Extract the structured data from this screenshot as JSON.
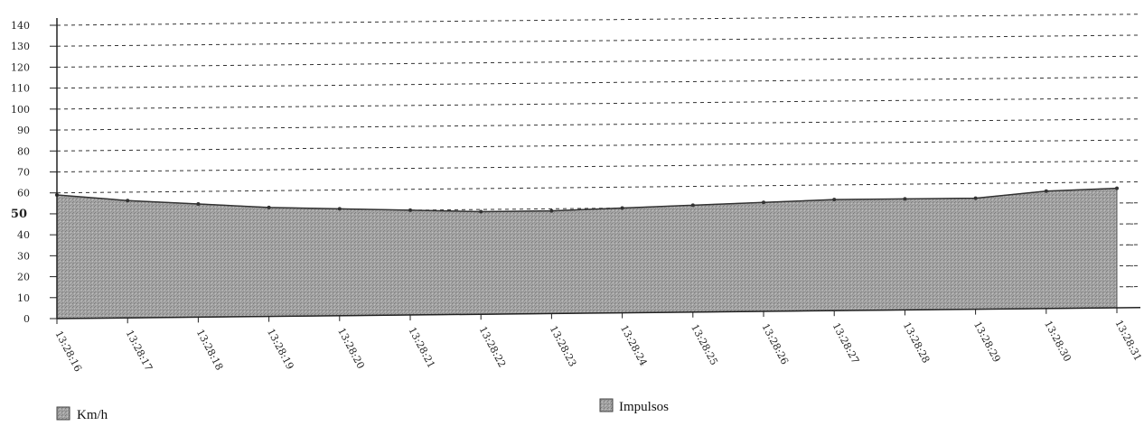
{
  "chart_data": {
    "type": "area",
    "y_ticks": [
      "0",
      "10",
      "20",
      "30",
      "40",
      "50",
      "60",
      "70",
      "80",
      "90",
      "100",
      "110",
      "120",
      "130",
      "140"
    ],
    "y_bold_tick": "50",
    "ylim": [
      0,
      140
    ],
    "x": [
      "13:28:16",
      "13:28:17",
      "13:28:18",
      "13:28:19",
      "13:28:20",
      "13:28:21",
      "13:28:22",
      "13:28:23",
      "13:28:24",
      "13:28:25",
      "13:28:26",
      "13:28:27",
      "13:28:28",
      "13:28:29",
      "13:28:30",
      "13:28:31"
    ],
    "series": [
      {
        "name": "Km/h",
        "values": [
          59,
          56,
          54,
          52,
          51,
          50,
          49,
          49,
          50,
          51,
          52,
          53,
          53,
          53,
          56,
          57
        ]
      },
      {
        "name": "Impulsos",
        "values": [
          59,
          56,
          54,
          52,
          51,
          50,
          49,
          49,
          50,
          51,
          52,
          53,
          53,
          53,
          56,
          57
        ]
      }
    ],
    "grid": "dashed-horizontal",
    "legend_position": "bottom"
  },
  "colors": {
    "area_fill": "#9a9a9a",
    "area_edge": "#555555",
    "grid": "#333333",
    "axis": "#222222"
  }
}
